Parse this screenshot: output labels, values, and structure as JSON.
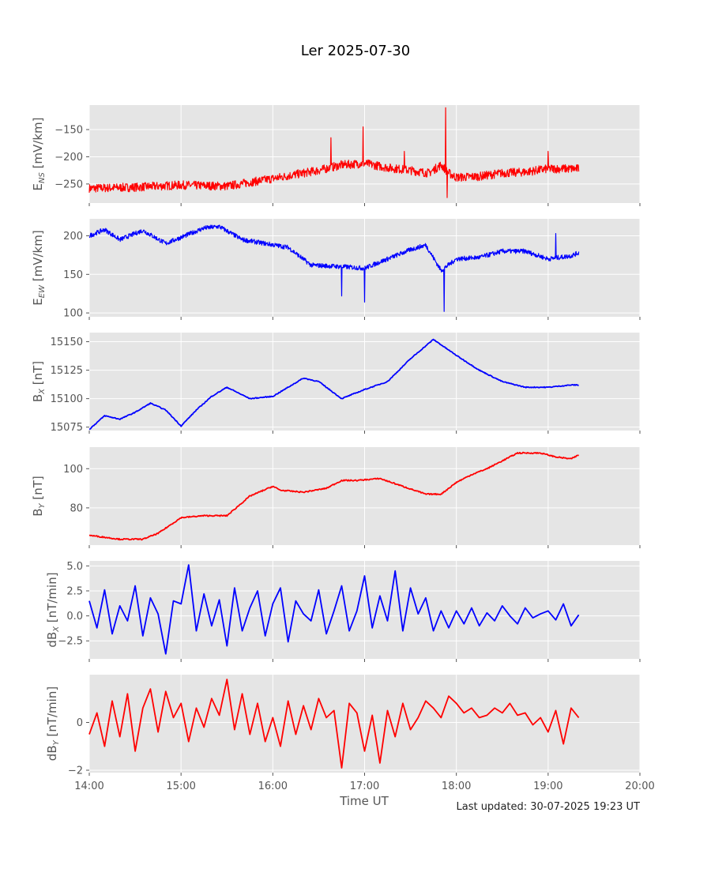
{
  "figure": {
    "title": "Ler 2025-07-30",
    "footer": "Last updated: 30-07-2025 19:23 UT",
    "xlabel": "Time UT",
    "x_ticks": [
      "14:00",
      "15:00",
      "16:00",
      "17:00",
      "18:00",
      "19:00",
      "20:00"
    ]
  },
  "chart_data": [
    {
      "type": "line",
      "ylabel_main": "E",
      "ylabel_sub": "NS",
      "ylabel_unit": " [mV/km]",
      "xlim": [
        "14:00",
        "20:00"
      ],
      "ylim": [
        -285,
        -105
      ],
      "yticks": [
        -150,
        -200,
        -250
      ],
      "ytick_labels": [
        "−150",
        "−200",
        "−250"
      ],
      "grid": true,
      "color": "#ff0000",
      "noise": 8,
      "series": [
        {
          "x": [
            "14:00",
            "14:30",
            "15:00",
            "15:30",
            "16:00",
            "16:30",
            "16:45",
            "17:00",
            "17:15",
            "17:30",
            "17:42",
            "17:50",
            "17:55",
            "18:00",
            "18:15",
            "18:30",
            "18:45",
            "19:00",
            "19:20"
          ],
          "values": [
            -258,
            -256,
            -252,
            -254,
            -240,
            -225,
            -215,
            -212,
            -220,
            -225,
            -230,
            -215,
            -230,
            -238,
            -236,
            -230,
            -228,
            -222,
            -222
          ]
        }
      ],
      "spikes": [
        {
          "x": "16:38",
          "value": -165
        },
        {
          "x": "16:59",
          "value": -145
        },
        {
          "x": "17:26",
          "value": -190
        },
        {
          "x": "17:53",
          "value": -110
        },
        {
          "x": "17:54",
          "value": -275
        },
        {
          "x": "19:00",
          "value": -190
        }
      ]
    },
    {
      "type": "line",
      "ylabel_main": "E",
      "ylabel_sub": "EW",
      "ylabel_unit": " [mV/km]",
      "xlim": [
        "14:00",
        "20:00"
      ],
      "ylim": [
        95,
        222
      ],
      "yticks": [
        200,
        150,
        100
      ],
      "ytick_labels": [
        "200",
        "150",
        "100"
      ],
      "grid": true,
      "color": "#0000ff",
      "noise": 3,
      "series": [
        {
          "x": [
            "14:00",
            "14:10",
            "14:20",
            "14:35",
            "14:50",
            "15:00",
            "15:15",
            "15:25",
            "15:40",
            "15:55",
            "16:10",
            "16:25",
            "16:45",
            "17:00",
            "17:15",
            "17:30",
            "17:40",
            "17:50",
            "18:00",
            "18:15",
            "18:30",
            "18:45",
            "19:00",
            "19:15",
            "19:20"
          ],
          "values": [
            200,
            208,
            195,
            207,
            190,
            198,
            210,
            212,
            195,
            190,
            185,
            162,
            160,
            158,
            170,
            182,
            188,
            155,
            170,
            172,
            180,
            180,
            170,
            174,
            178
          ]
        }
      ],
      "spikes": [
        {
          "x": "16:45",
          "value": 122
        },
        {
          "x": "17:00",
          "value": 114
        },
        {
          "x": "17:52",
          "value": 102
        },
        {
          "x": "19:05",
          "value": 203
        }
      ]
    },
    {
      "type": "line",
      "ylabel_main": "B",
      "ylabel_sub": "X",
      "ylabel_unit": " [nT]",
      "xlim": [
        "14:00",
        "20:00"
      ],
      "ylim": [
        15072,
        15158
      ],
      "yticks": [
        15150,
        15125,
        15100,
        15075
      ],
      "ytick_labels": [
        "15150",
        "15125",
        "15100",
        "15075"
      ],
      "grid": true,
      "color": "#0000ff",
      "noise": 0.4,
      "series": [
        {
          "x": [
            "14:00",
            "14:10",
            "14:20",
            "14:30",
            "14:40",
            "14:50",
            "15:00",
            "15:10",
            "15:20",
            "15:30",
            "15:45",
            "16:00",
            "16:10",
            "16:20",
            "16:30",
            "16:45",
            "17:00",
            "17:15",
            "17:30",
            "17:45",
            "18:00",
            "18:15",
            "18:30",
            "18:45",
            "19:00",
            "19:15",
            "19:20"
          ],
          "values": [
            15073,
            15085,
            15082,
            15088,
            15096,
            15090,
            15076,
            15090,
            15102,
            15110,
            15100,
            15102,
            15110,
            15118,
            15115,
            15100,
            15108,
            15115,
            15135,
            15152,
            15138,
            15125,
            15115,
            15110,
            15110,
            15112,
            15112
          ]
        }
      ],
      "spikes": []
    },
    {
      "type": "line",
      "ylabel_main": "B",
      "ylabel_sub": "Y",
      "ylabel_unit": " [nT]",
      "xlim": [
        "14:00",
        "20:00"
      ],
      "ylim": [
        61,
        111
      ],
      "yticks": [
        100,
        80
      ],
      "ytick_labels": [
        "100",
        "80"
      ],
      "grid": true,
      "color": "#ff0000",
      "noise": 0.3,
      "series": [
        {
          "x": [
            "14:00",
            "14:20",
            "14:35",
            "14:45",
            "15:00",
            "15:15",
            "15:30",
            "15:45",
            "16:00",
            "16:05",
            "16:20",
            "16:35",
            "16:45",
            "16:55",
            "17:10",
            "17:25",
            "17:40",
            "17:50",
            "18:00",
            "18:10",
            "18:20",
            "18:30",
            "18:40",
            "18:55",
            "19:05",
            "19:15",
            "19:20"
          ],
          "values": [
            66,
            64,
            64,
            67,
            75,
            76,
            76,
            86,
            91,
            89,
            88,
            90,
            94,
            94,
            95,
            91,
            87,
            87,
            93,
            97,
            100,
            104,
            108,
            108,
            106,
            105,
            107
          ]
        }
      ],
      "spikes": []
    },
    {
      "type": "line",
      "ylabel_main": "dB",
      "ylabel_sub": "X",
      "ylabel_unit": " [nT/min]",
      "xlim": [
        "14:00",
        "20:00"
      ],
      "ylim": [
        -4.3,
        5.5
      ],
      "yticks": [
        5.0,
        2.5,
        0.0,
        -2.5
      ],
      "ytick_labels": [
        "5.0",
        "2.5",
        "0.0",
        "−2.5"
      ],
      "grid": true,
      "color": "#0000ff",
      "noise": 0,
      "series": [
        {
          "x": [
            "14:00",
            "14:05",
            "14:10",
            "14:15",
            "14:20",
            "14:25",
            "14:30",
            "14:35",
            "14:40",
            "14:45",
            "14:50",
            "14:55",
            "15:00",
            "15:05",
            "15:10",
            "15:15",
            "15:20",
            "15:25",
            "15:30",
            "15:35",
            "15:40",
            "15:45",
            "15:50",
            "15:55",
            "16:00",
            "16:05",
            "16:10",
            "16:15",
            "16:20",
            "16:25",
            "16:30",
            "16:35",
            "16:40",
            "16:45",
            "16:50",
            "16:55",
            "17:00",
            "17:05",
            "17:10",
            "17:15",
            "17:20",
            "17:25",
            "17:30",
            "17:35",
            "17:40",
            "17:45",
            "17:50",
            "17:55",
            "18:00",
            "18:05",
            "18:10",
            "18:15",
            "18:20",
            "18:25",
            "18:30",
            "18:35",
            "18:40",
            "18:45",
            "18:50",
            "18:55",
            "19:00",
            "19:05",
            "19:10",
            "19:15",
            "19:20"
          ],
          "values": [
            1.5,
            -1.2,
            2.6,
            -1.8,
            1.0,
            -0.5,
            3.0,
            -2.0,
            1.8,
            0.2,
            -3.8,
            1.5,
            1.2,
            5.1,
            -1.5,
            2.2,
            -1.0,
            1.6,
            -3.0,
            2.8,
            -1.5,
            0.8,
            2.5,
            -2.0,
            1.2,
            2.8,
            -2.6,
            1.5,
            0.2,
            -0.5,
            2.6,
            -1.8,
            0.5,
            3.0,
            -1.5,
            0.5,
            4.0,
            -1.2,
            2.0,
            -0.5,
            4.5,
            -1.5,
            2.8,
            0.2,
            1.8,
            -1.5,
            0.5,
            -1.2,
            0.5,
            -0.8,
            0.8,
            -1.0,
            0.3,
            -0.5,
            1.0,
            0.0,
            -0.8,
            0.8,
            -0.2,
            0.2,
            0.5,
            -0.4,
            1.2,
            -1.0,
            0.1
          ]
        }
      ],
      "spikes": []
    },
    {
      "type": "line",
      "ylabel_main": "dB",
      "ylabel_sub": "Y",
      "ylabel_unit": " [nT/min]",
      "xlim": [
        "14:00",
        "20:00"
      ],
      "ylim": [
        -2.1,
        2.0
      ],
      "yticks": [
        0,
        -2
      ],
      "ytick_labels": [
        "0",
        "−2"
      ],
      "grid": true,
      "color": "#ff0000",
      "noise": 0,
      "series": [
        {
          "x": [
            "14:00",
            "14:05",
            "14:10",
            "14:15",
            "14:20",
            "14:25",
            "14:30",
            "14:35",
            "14:40",
            "14:45",
            "14:50",
            "14:55",
            "15:00",
            "15:05",
            "15:10",
            "15:15",
            "15:20",
            "15:25",
            "15:30",
            "15:35",
            "15:40",
            "15:45",
            "15:50",
            "15:55",
            "16:00",
            "16:05",
            "16:10",
            "16:15",
            "16:20",
            "16:25",
            "16:30",
            "16:35",
            "16:40",
            "16:45",
            "16:50",
            "16:55",
            "17:00",
            "17:05",
            "17:10",
            "17:15",
            "17:20",
            "17:25",
            "17:30",
            "17:35",
            "17:40",
            "17:45",
            "17:50",
            "17:55",
            "18:00",
            "18:05",
            "18:10",
            "18:15",
            "18:20",
            "18:25",
            "18:30",
            "18:35",
            "18:40",
            "18:45",
            "18:50",
            "18:55",
            "19:00",
            "19:05",
            "19:10",
            "19:15",
            "19:20"
          ],
          "values": [
            -0.5,
            0.4,
            -1.0,
            0.9,
            -0.6,
            1.2,
            -1.2,
            0.6,
            1.4,
            -0.4,
            1.3,
            0.2,
            0.8,
            -0.8,
            0.6,
            -0.2,
            1.0,
            0.3,
            1.8,
            -0.3,
            1.2,
            -0.5,
            0.8,
            -0.8,
            0.2,
            -1.0,
            0.9,
            -0.5,
            0.7,
            -0.3,
            1.0,
            0.2,
            0.5,
            -1.9,
            0.8,
            0.4,
            -1.2,
            0.3,
            -1.7,
            0.5,
            -0.6,
            0.8,
            -0.3,
            0.2,
            0.9,
            0.6,
            0.2,
            1.1,
            0.8,
            0.4,
            0.6,
            0.2,
            0.3,
            0.6,
            0.4,
            0.8,
            0.3,
            0.4,
            -0.1,
            0.2,
            -0.4,
            0.5,
            -0.9,
            0.6,
            0.2
          ]
        }
      ],
      "spikes": []
    }
  ]
}
